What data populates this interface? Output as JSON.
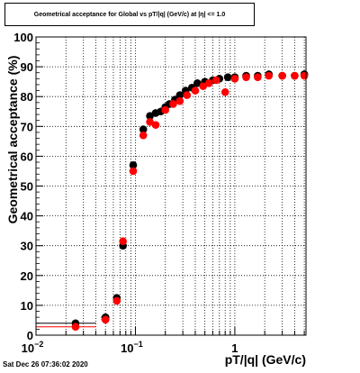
{
  "chart_data": {
    "type": "scatter",
    "title": "Geometrical acceptance for Global vs pT/|q| (GeV/c) at |η| <= 1.0",
    "xlabel": "pT/|q| (GeV/c)",
    "ylabel": "Geometrical acceptance (%)",
    "x_scale": "log",
    "xlim": [
      0.01,
      5.2
    ],
    "ylim": [
      0,
      100
    ],
    "grid": true,
    "x_ticks": [
      {
        "value": 0.01,
        "label": "10",
        "sup": "−2"
      },
      {
        "value": 0.1,
        "label": "10",
        "sup": "−1"
      },
      {
        "value": 1,
        "label": "1",
        "sup": ""
      }
    ],
    "y_ticks": [
      0,
      10,
      20,
      30,
      40,
      50,
      60,
      70,
      80,
      90,
      100
    ],
    "series": [
      {
        "color": "#000000",
        "points": [
          {
            "x": 0.025,
            "y": 4.0,
            "xerr": [
              0.01,
              0.04
            ]
          },
          {
            "x": 0.05,
            "y": 6.0,
            "xerr": [
              0.045,
              0.055
            ]
          },
          {
            "x": 0.065,
            "y": 12.5,
            "xerr": [
              0.06,
              0.07
            ]
          },
          {
            "x": 0.075,
            "y": 30.0
          },
          {
            "x": 0.095,
            "y": 57.0
          },
          {
            "x": 0.12,
            "y": 69.0
          },
          {
            "x": 0.14,
            "y": 73.5
          },
          {
            "x": 0.16,
            "y": 74.5
          },
          {
            "x": 0.18,
            "y": 75.0
          },
          {
            "x": 0.2,
            "y": 76.5
          },
          {
            "x": 0.22,
            "y": 77.5
          },
          {
            "x": 0.25,
            "y": 79.0
          },
          {
            "x": 0.28,
            "y": 80.5
          },
          {
            "x": 0.32,
            "y": 82.0
          },
          {
            "x": 0.37,
            "y": 83.0
          },
          {
            "x": 0.42,
            "y": 84.5
          },
          {
            "x": 0.5,
            "y": 85.0
          },
          {
            "x": 0.6,
            "y": 85.5
          },
          {
            "x": 0.7,
            "y": 86.0
          },
          {
            "x": 0.85,
            "y": 86.5
          },
          {
            "x": 1.0,
            "y": 86.5
          },
          {
            "x": 1.3,
            "y": 87.0
          },
          {
            "x": 1.7,
            "y": 87.0
          },
          {
            "x": 2.2,
            "y": 87.5
          },
          {
            "x": 3.0,
            "y": 87.0
          },
          {
            "x": 4.0,
            "y": 87.0
          },
          {
            "x": 5.0,
            "y": 87.5
          }
        ]
      },
      {
        "color": "#ff0000",
        "points": [
          {
            "x": 0.025,
            "y": 2.8,
            "xerr": [
              0.01,
              0.04
            ]
          },
          {
            "x": 0.05,
            "y": 5.2,
            "xerr": [
              0.045,
              0.055
            ]
          },
          {
            "x": 0.065,
            "y": 11.5,
            "xerr": [
              0.06,
              0.07
            ]
          },
          {
            "x": 0.075,
            "y": 31.5
          },
          {
            "x": 0.095,
            "y": 55.0
          },
          {
            "x": 0.12,
            "y": 67.0
          },
          {
            "x": 0.14,
            "y": 71.5
          },
          {
            "x": 0.16,
            "y": 70.5
          },
          {
            "x": 0.2,
            "y": 75.5
          },
          {
            "x": 0.24,
            "y": 77.5
          },
          {
            "x": 0.28,
            "y": 78.5
          },
          {
            "x": 0.33,
            "y": 80.5
          },
          {
            "x": 0.4,
            "y": 82.0
          },
          {
            "x": 0.48,
            "y": 83.5
          },
          {
            "x": 0.55,
            "y": 84.5
          },
          {
            "x": 0.65,
            "y": 85.5
          },
          {
            "x": 0.8,
            "y": 81.5
          },
          {
            "x": 1.0,
            "y": 86.0
          },
          {
            "x": 1.3,
            "y": 86.5
          },
          {
            "x": 1.7,
            "y": 86.5
          },
          {
            "x": 2.2,
            "y": 87.0
          },
          {
            "x": 3.0,
            "y": 87.0
          },
          {
            "x": 4.0,
            "y": 87.0
          },
          {
            "x": 5.0,
            "y": 87.0
          }
        ]
      }
    ]
  },
  "footer": {
    "date": "Sat Dec 26 07:36:02 2020"
  }
}
